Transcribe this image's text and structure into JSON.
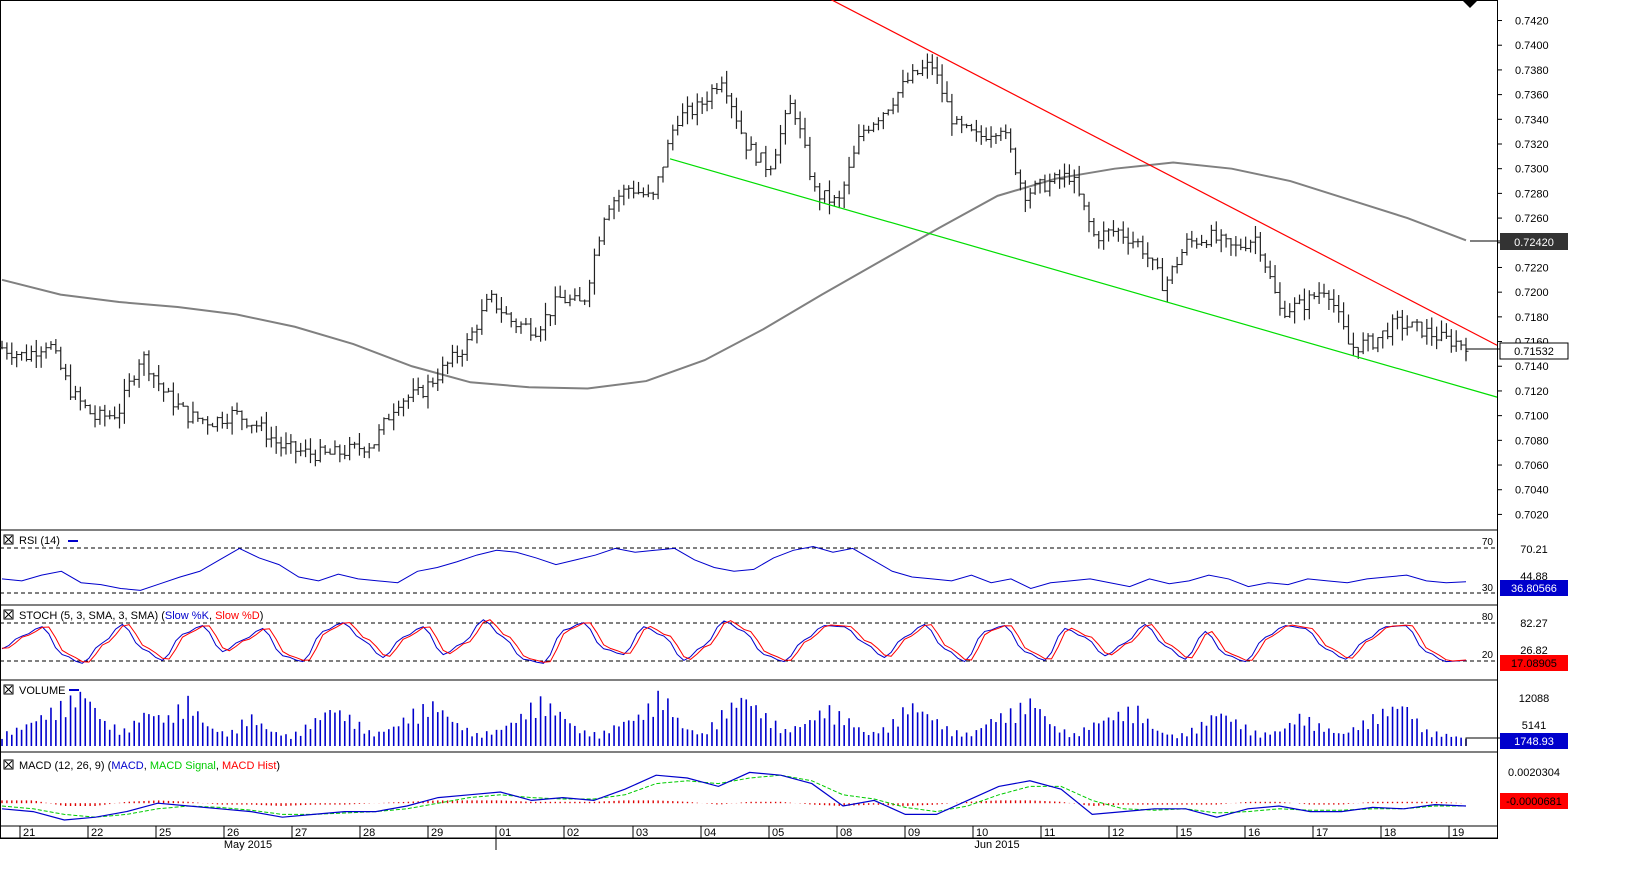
{
  "chart_data": {
    "type": "ohlc",
    "price": {
      "ticks": [
        "0.7020",
        "0.7040",
        "0.7060",
        "0.7080",
        "0.7100",
        "0.7120",
        "0.7140",
        "0.7160",
        "0.7180",
        "0.7200",
        "0.7220",
        "0.7240",
        "0.7260",
        "0.7280",
        "0.7300",
        "0.7320",
        "0.7340",
        "0.7360",
        "0.7380",
        "0.7400",
        "0.7420"
      ],
      "ylim": [
        0.7009,
        0.7435
      ],
      "last_price": "0.71532",
      "ma_value": "0.72420",
      "ma_line": [
        0.721,
        0.7198,
        0.7192,
        0.7188,
        0.7182,
        0.7172,
        0.7158,
        0.714,
        0.7127,
        0.7123,
        0.7122,
        0.7128,
        0.7145,
        0.717,
        0.7198,
        0.7225,
        0.7252,
        0.7278,
        0.7292,
        0.73,
        0.7305,
        0.73,
        0.729,
        0.7275,
        0.726,
        0.7242
      ],
      "ohlc_points": [
        0.7155,
        0.7148,
        0.716,
        0.7118,
        0.7098,
        0.7102,
        0.715,
        0.7118,
        0.71,
        0.7095,
        0.7102,
        0.7092,
        0.7075,
        0.707,
        0.7068,
        0.7072,
        0.7078,
        0.7112,
        0.7118,
        0.7138,
        0.7158,
        0.7195,
        0.7175,
        0.717,
        0.7195,
        0.719,
        0.727,
        0.7285,
        0.7275,
        0.734,
        0.735,
        0.7375,
        0.732,
        0.73,
        0.7355,
        0.728,
        0.7272,
        0.733,
        0.7348,
        0.7372,
        0.7385,
        0.7335,
        0.7325,
        0.7335,
        0.728,
        0.7288,
        0.7295,
        0.7245,
        0.725,
        0.7238,
        0.7205,
        0.724,
        0.7245,
        0.7235,
        0.7245,
        0.7185,
        0.719,
        0.7205,
        0.7155,
        0.716,
        0.7175,
        0.717,
        0.7162,
        0.7158
      ],
      "upper_trendline": [
        0.745,
        0.7157
      ],
      "lower_trendline": [
        0.7308,
        0.7115
      ]
    },
    "rsi": {
      "label": "RSI (14)",
      "levels": [
        "70",
        "30"
      ],
      "value": "36.80566",
      "ticks": [
        "70.21",
        "44.88"
      ],
      "points": [
        40,
        38,
        44,
        48,
        36,
        34,
        30,
        28,
        35,
        42,
        48,
        60,
        72,
        62,
        55,
        42,
        38,
        45,
        40,
        38,
        36,
        48,
        52,
        58,
        65,
        70,
        68,
        62,
        55,
        60,
        65,
        72,
        68,
        70,
        72,
        60,
        52,
        48,
        50,
        62,
        70,
        74,
        68,
        72,
        60,
        48,
        42,
        40,
        38,
        44,
        36,
        40,
        30,
        36,
        38,
        40,
        36,
        32,
        40,
        35,
        38,
        44,
        40,
        32,
        36,
        34,
        40,
        38,
        36,
        40,
        42,
        44,
        38,
        36,
        37
      ]
    },
    "stoch": {
      "label": "STOCH (5, 3, SMA, 3, SMA)",
      "series": [
        "Slow %K",
        "Slow %D"
      ],
      "levels": [
        "80",
        "20"
      ],
      "value": "17.08905",
      "ticks": [
        "82.27",
        "26.82"
      ],
      "points": [
        40,
        62,
        78,
        30,
        15,
        50,
        82,
        40,
        20,
        65,
        80,
        35,
        55,
        75,
        28,
        18,
        70,
        85,
        55,
        25,
        60,
        78,
        30,
        50,
        90,
        60,
        22,
        15,
        72,
        85,
        40,
        30,
        78,
        62,
        20,
        45,
        88,
        70,
        30,
        18,
        55,
        80,
        78,
        50,
        25,
        60,
        82,
        40,
        18,
        70,
        80,
        35,
        20,
        75,
        60,
        28,
        50,
        82,
        45,
        22,
        70,
        30,
        18,
        60,
        80,
        75,
        40,
        22,
        55,
        78,
        80,
        35,
        18,
        20
      ]
    },
    "volume": {
      "label": "VOLUME",
      "ticks": [
        "12088",
        "5141"
      ],
      "value": "1748.93",
      "max": 14500,
      "bars": [
        3000,
        5000,
        8000,
        11000,
        14000,
        6000,
        4000,
        9000,
        7000,
        12000,
        5000,
        3000,
        8000,
        4000,
        2500,
        6000,
        10000,
        7000,
        3000,
        5000,
        9000,
        11000,
        6000,
        3000,
        4000,
        7000,
        12000,
        9000,
        4000,
        3000,
        6000,
        8000,
        14000,
        5000,
        3000,
        9000,
        13000,
        8000,
        4000,
        6000,
        10000,
        7000,
        3000,
        5000,
        11000,
        8000,
        4000,
        3000,
        7000,
        9000,
        12000,
        5000,
        3000,
        6000,
        8000,
        10000,
        4000,
        2500,
        5000,
        9000,
        6000,
        3000,
        4000,
        8000,
        5000,
        3000,
        6000,
        9000,
        11000,
        4000,
        3000,
        2000
      ]
    },
    "macd": {
      "label": "MACD (12, 26, 9)",
      "series": [
        "MACD",
        "MACD Signal",
        "MACD Hist"
      ],
      "ticks": [
        "0.0020304"
      ],
      "value": "-0.0000681",
      "ylim": [
        -0.0012,
        0.0028
      ],
      "macd_line": [
        -0.0004,
        -0.0006,
        -0.0012,
        -0.001,
        -0.0006,
        0.0,
        -0.0002,
        -0.0004,
        -0.0006,
        -0.001,
        -0.0008,
        -0.0006,
        -0.0006,
        -0.0002,
        0.0004,
        0.0006,
        0.0008,
        0.0002,
        0.0004,
        0.0002,
        0.001,
        0.002,
        0.0018,
        0.0012,
        0.0022,
        0.002,
        0.0014,
        -0.0002,
        0.0002,
        -0.0008,
        -0.0008,
        0.0002,
        0.0012,
        0.0016,
        0.001,
        -0.0008,
        -0.0006,
        -0.0004,
        -0.0004,
        -0.001,
        -0.0004,
        -0.0002,
        -0.0006,
        -0.0006,
        -0.0003,
        -0.0004,
        -0.0001,
        -0.0002
      ],
      "signal_line": [
        -0.0002,
        -0.0004,
        -0.0008,
        -0.001,
        -0.0008,
        -0.0004,
        -0.0002,
        -0.0003,
        -0.0005,
        -0.0008,
        -0.0008,
        -0.0007,
        -0.0006,
        -0.0004,
        0.0,
        0.0004,
        0.0006,
        0.0004,
        0.0003,
        0.0003,
        0.0006,
        0.0014,
        0.0016,
        0.0014,
        0.0018,
        0.002,
        0.0016,
        0.0006,
        0.0003,
        -0.0003,
        -0.0006,
        -0.0002,
        0.0006,
        0.0012,
        0.0012,
        0.0002,
        -0.0004,
        -0.0005,
        -0.0004,
        -0.0007,
        -0.0006,
        -0.0004,
        -0.0005,
        -0.0005,
        -0.0004,
        -0.0004,
        -0.0002,
        -0.0002
      ],
      "hist": [
        0.0002,
        0.0002,
        -0.0002,
        -0.0002,
        0.0001,
        0.0002,
        0.0001,
        -0.0001,
        -0.0001,
        -0.0002,
        -0.0001,
        -0.0001,
        0.0,
        0.0001,
        0.0002,
        0.0002,
        0.0002,
        0.0001,
        0.0001,
        0.0001,
        0.0002,
        0.0002,
        0.0001,
        -0.0001,
        0.0001,
        0.0001,
        -0.0001,
        -0.0002,
        -0.0001,
        -0.0002,
        -0.0001,
        0.0001,
        0.0002,
        0.0002,
        0.0001,
        -0.0002,
        -0.0001,
        -0.0001,
        -0.0001,
        -0.0001,
        0.0001,
        0.0001,
        -0.0001,
        -0.0001,
        0.0001,
        0.0001,
        0.0001,
        0.0
      ]
    },
    "x_axis": {
      "days": [
        "21",
        "22",
        "25",
        "26",
        "27",
        "28",
        "29",
        "01",
        "02",
        "03",
        "04",
        "05",
        "08",
        "09",
        "10",
        "11",
        "12",
        "15",
        "16",
        "17",
        "18",
        "19"
      ],
      "months": [
        "May 2015",
        "Jun 2015"
      ]
    }
  },
  "colors": {
    "bars": "#222222",
    "ma": "#808080",
    "resistance": "#ff0000",
    "support": "#00dd00",
    "rsi": "#0000cc",
    "stoch_k": "#0000cc",
    "stoch_d": "#ff0000",
    "volume": "#0000cc",
    "macd": "#0000cc",
    "signal": "#00cc00",
    "hist": "#dd0000",
    "box_blue": "#0000cc",
    "box_red": "#ff0000",
    "box_dark": "#333333"
  }
}
